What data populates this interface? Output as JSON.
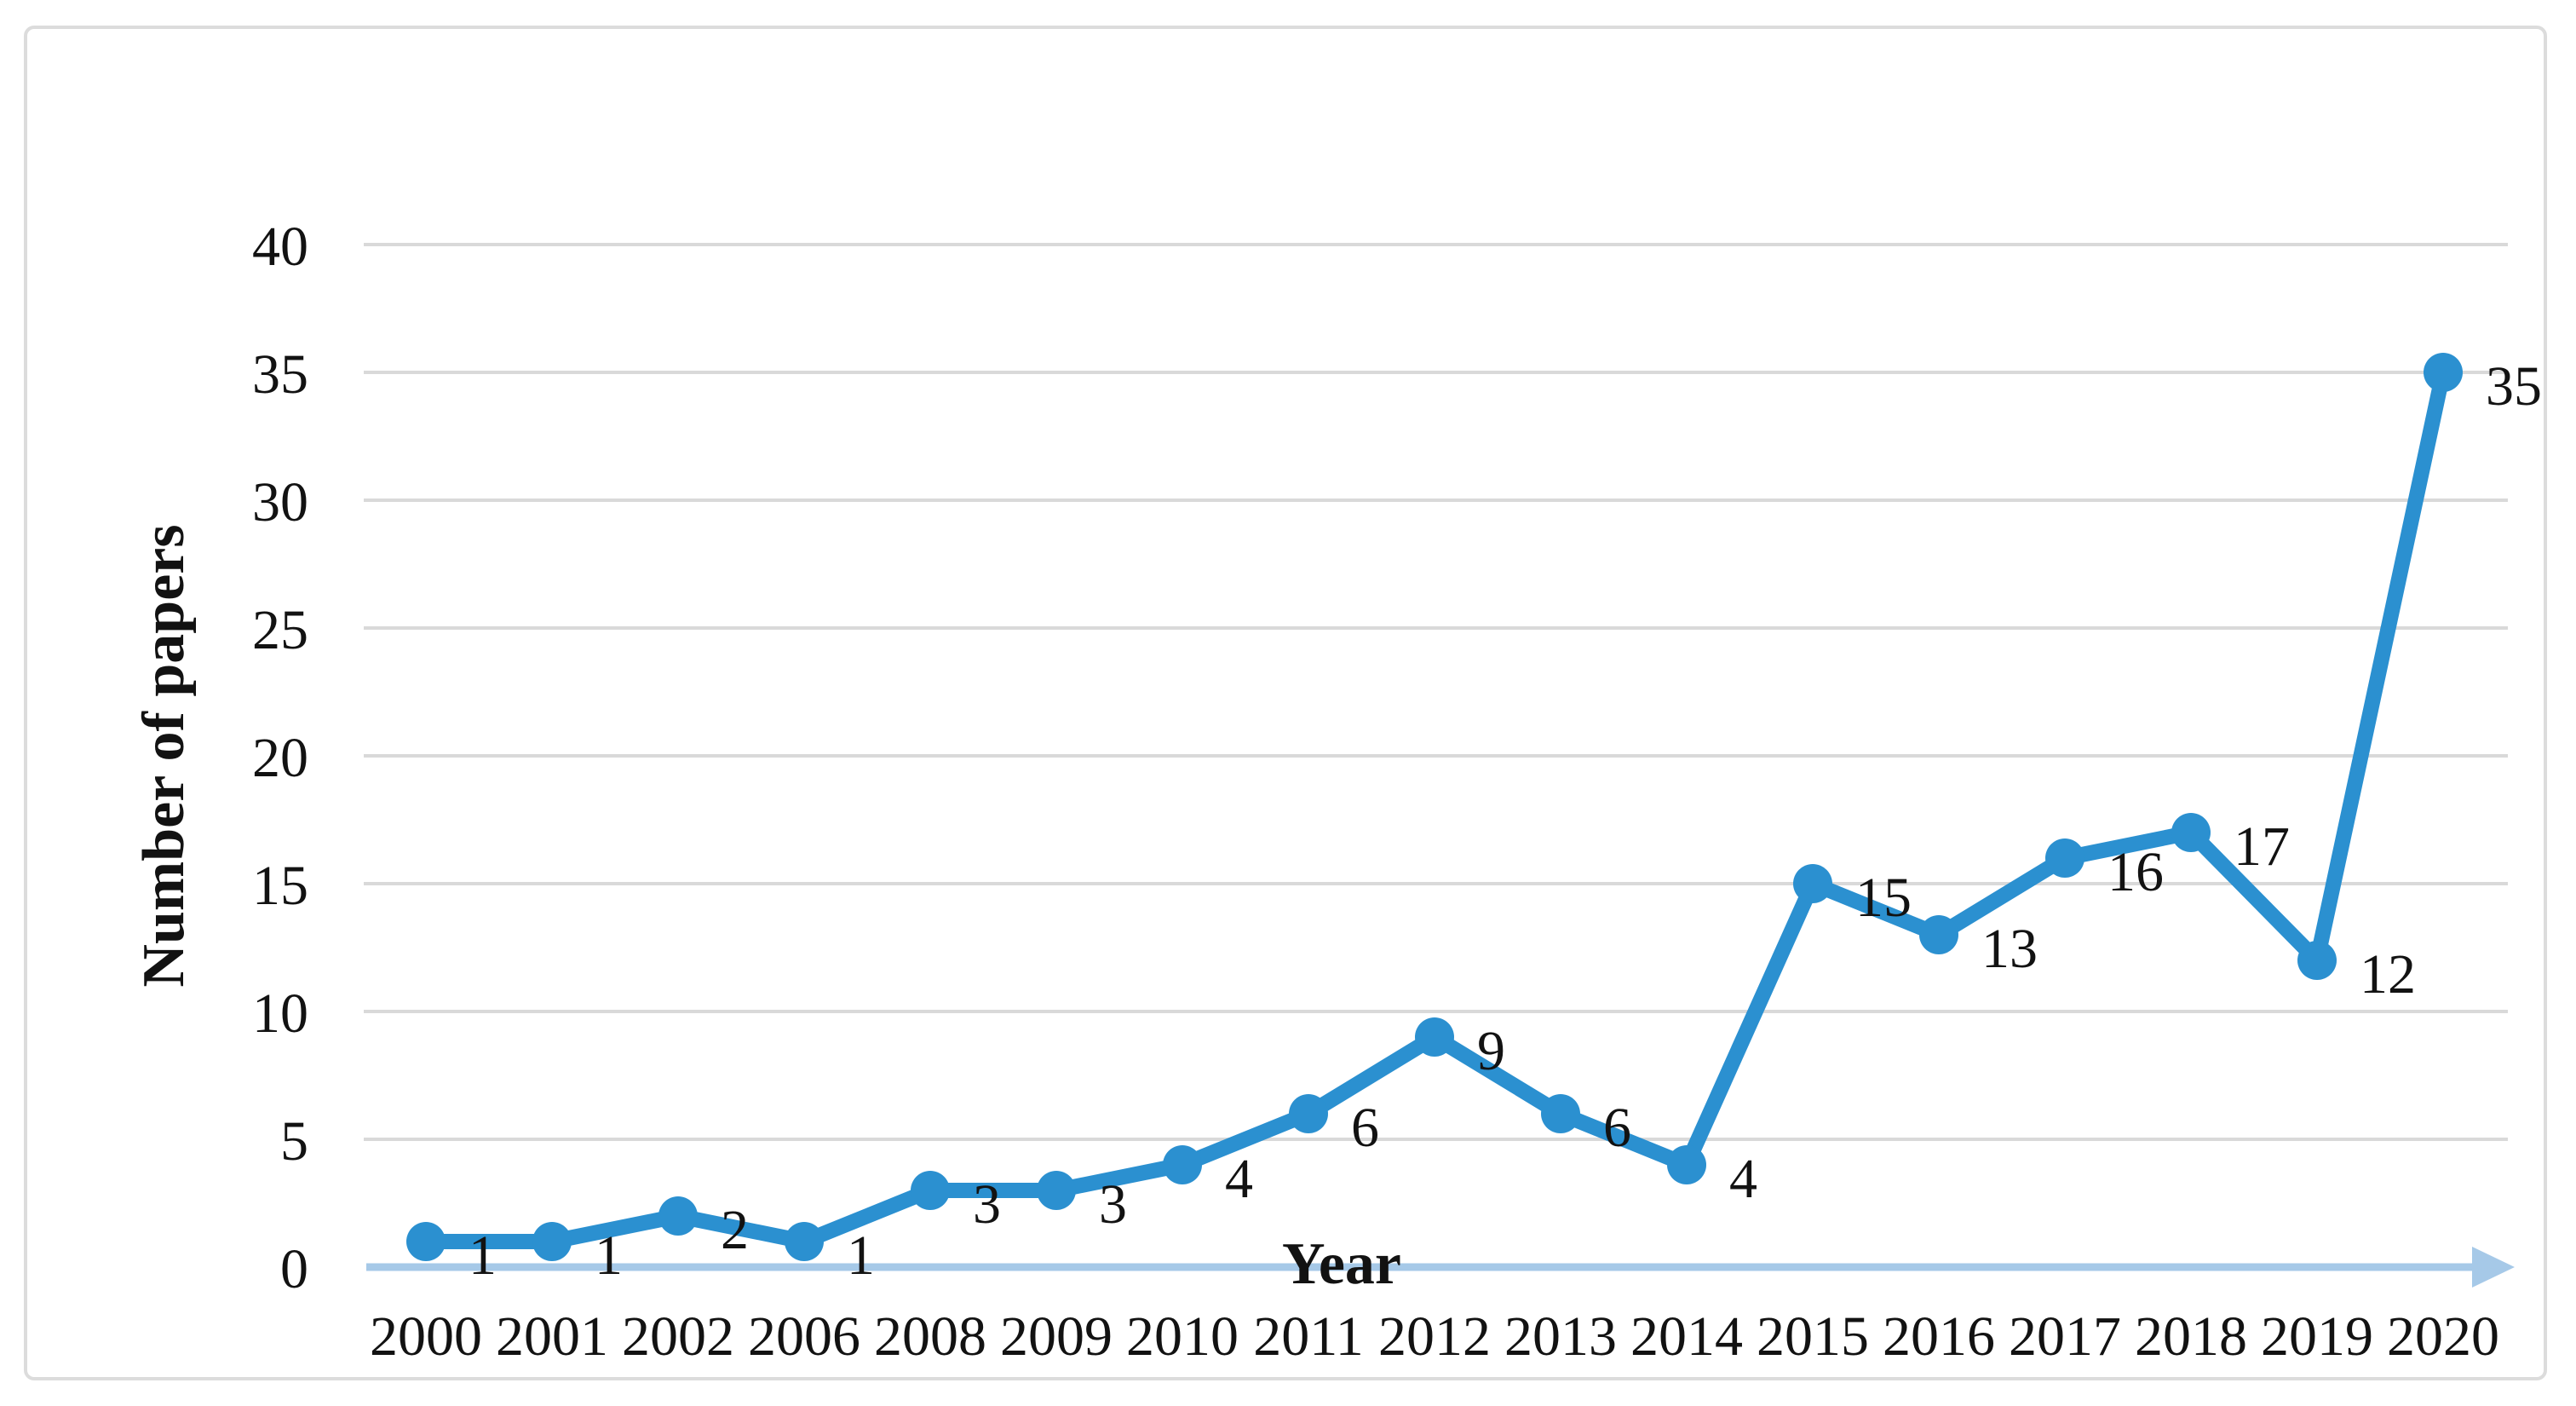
{
  "figure": {
    "background_color": "#ffffff",
    "border_color": "#dcdcdc"
  },
  "chart_data": {
    "type": "line",
    "title": "",
    "xlabel": "Year",
    "ylabel": "Number of papers",
    "categories": [
      "2000",
      "2001",
      "2002",
      "2006",
      "2008",
      "2009",
      "2010",
      "2011",
      "2012",
      "2013",
      "2014",
      "2015",
      "2016",
      "2017",
      "2018",
      "2019",
      "2020"
    ],
    "series": [
      {
        "name": "Number of papers",
        "values": [
          1,
          1,
          2,
          1,
          3,
          3,
          4,
          6,
          9,
          6,
          4,
          15,
          13,
          16,
          17,
          12,
          35
        ],
        "color": "#2b90d0",
        "marker": "circle",
        "data_labels": [
          1,
          1,
          2,
          1,
          3,
          3,
          4,
          6,
          9,
          6,
          4,
          15,
          13,
          16,
          17,
          12,
          35
        ]
      }
    ],
    "ylim": [
      0,
      40
    ],
    "yticks": [
      0,
      5,
      10,
      15,
      20,
      25,
      30,
      35,
      40
    ],
    "grid": "horizontal-only",
    "gridline_color": "#d9d9d9",
    "axis_line_color": "#a6c9e8",
    "axis_arrow": "right",
    "legend_position": "none",
    "data_label_color": "#121212"
  }
}
